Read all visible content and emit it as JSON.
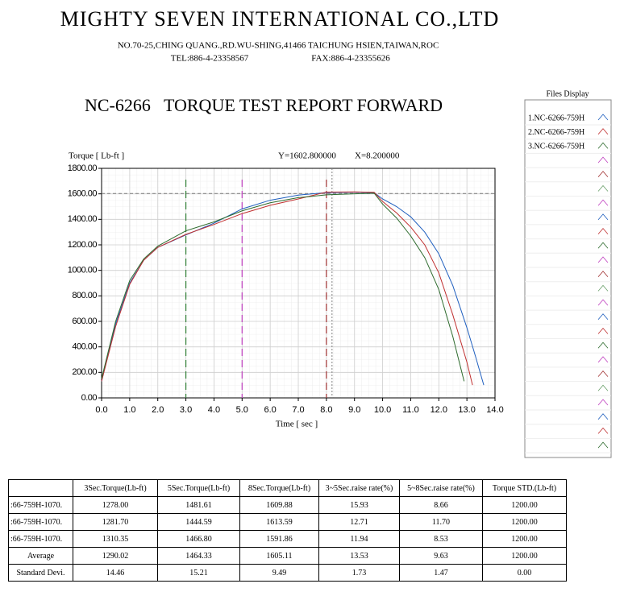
{
  "header": {
    "company": "MIGHTY SEVEN INTERNATIONAL CO.,LTD",
    "address": "NO.70-25,CHING QUANG.,RD.WU-SHING,41466 TAICHUNG HSIEN,TAIWAN,ROC",
    "tel": "TEL:886-4-23358567",
    "fax": "FAX:886-4-23355626",
    "report_title": "NC-6266   TORQUE TEST REPORT FORWARD"
  },
  "files_display": {
    "title": "Files Display",
    "items": [
      "1.NC-6266-759H",
      "2.NC-6266-759H",
      "3.NC-6266-759H"
    ]
  },
  "chart_data": {
    "type": "line",
    "y_axis_label": "Torque [ Lb-ft ]",
    "x_axis_label": "Time [ sec ]",
    "cursor": {
      "x": 8.2,
      "y": 1602.8,
      "x_label": "X=8.200000",
      "y_label": "Y=1602.800000",
      "color": "#808080"
    },
    "markers": [
      {
        "x": 3,
        "color": "#2e7d32"
      },
      {
        "x": 5,
        "color": "#c040c0"
      },
      {
        "x": 8,
        "color": "#a03030"
      }
    ],
    "xlim": [
      0,
      14
    ],
    "ylim": [
      0,
      1800
    ],
    "grid": true,
    "xticks": [
      {
        "value": 0,
        "label": "0.0"
      },
      {
        "value": 1,
        "label": "1.0"
      },
      {
        "value": 2,
        "label": "2.0"
      },
      {
        "value": 3,
        "label": "3.0"
      },
      {
        "value": 4,
        "label": "4.0"
      },
      {
        "value": 5,
        "label": "5.0"
      },
      {
        "value": 6,
        "label": "6.0"
      },
      {
        "value": 7,
        "label": "7.0"
      },
      {
        "value": 8,
        "label": "8.0"
      },
      {
        "value": 9,
        "label": "9.0"
      },
      {
        "value": 10,
        "label": "10.0"
      },
      {
        "value": 11,
        "label": "11.0"
      },
      {
        "value": 12,
        "label": "12.0"
      },
      {
        "value": 13,
        "label": "13.0"
      },
      {
        "value": 14,
        "label": "14.0"
      }
    ],
    "yticks": [
      {
        "value": 0,
        "label": "0.00"
      },
      {
        "value": 200,
        "label": "200.00"
      },
      {
        "value": 400,
        "label": "400.00"
      },
      {
        "value": 600,
        "label": "600.00"
      },
      {
        "value": 800,
        "label": "800.00"
      },
      {
        "value": 1000,
        "label": "1000.00"
      },
      {
        "value": 1200,
        "label": "1200.00"
      },
      {
        "value": 1400,
        "label": "1400.00"
      },
      {
        "value": 1600,
        "label": "1600.00"
      },
      {
        "value": 1800,
        "label": "1800.00"
      }
    ],
    "series": [
      {
        "color": "#1f5fbf",
        "x": [
          0,
          0.3,
          0.5,
          1,
          1.5,
          2,
          3,
          4,
          5,
          6,
          7,
          8,
          9,
          9.7,
          10,
          10.5,
          11,
          11.5,
          12,
          12.5,
          13,
          13.3,
          13.6
        ],
        "values": [
          130,
          400,
          580,
          900,
          1080,
          1180,
          1278,
          1370,
          1482,
          1550,
          1590,
          1610,
          1612,
          1610,
          1560,
          1500,
          1420,
          1300,
          1130,
          880,
          550,
          330,
          100
        ]
      },
      {
        "color": "#c03030",
        "x": [
          0,
          0.5,
          1,
          1.5,
          2,
          3,
          4,
          5,
          6,
          7,
          8,
          9,
          9.7,
          10,
          10.5,
          11,
          11.5,
          12,
          12.5,
          13,
          13.2
        ],
        "values": [
          130,
          560,
          890,
          1080,
          1180,
          1282,
          1360,
          1445,
          1510,
          1560,
          1614,
          1615,
          1612,
          1540,
          1450,
          1340,
          1200,
          980,
          650,
          280,
          100
        ]
      },
      {
        "color": "#2e6b2e",
        "x": [
          0,
          0.5,
          1,
          1.5,
          2,
          3,
          4,
          5,
          6,
          7,
          8,
          9,
          9.7,
          10,
          10.5,
          11,
          11.5,
          12,
          12.5,
          12.9
        ],
        "values": [
          150,
          600,
          920,
          1090,
          1190,
          1310,
          1380,
          1467,
          1530,
          1570,
          1592,
          1600,
          1605,
          1520,
          1410,
          1270,
          1100,
          850,
          480,
          130
        ]
      }
    ]
  },
  "table": {
    "columns": [
      "3Sec.Torque(Lb-ft)",
      "5Sec.Torque(Lb-ft)",
      "8Sec.Torque(Lb-ft)",
      "3~5Sec.raise rate(%)",
      "5~8Sec.raise rate(%)",
      "Torque STD.(Lb-ft)"
    ],
    "rows": [
      [
        ":66-759H-1070.",
        "1278.00",
        "1481.61",
        "1609.88",
        "15.93",
        "8.66",
        "1200.00"
      ],
      [
        ":66-759H-1070.",
        "1281.70",
        "1444.59",
        "1613.59",
        "12.71",
        "11.70",
        "1200.00"
      ],
      [
        ":66-759H-1070.",
        "1310.35",
        "1466.80",
        "1591.86",
        "11.94",
        "8.53",
        "1200.00"
      ],
      [
        "Average",
        "1290.02",
        "1464.33",
        "1605.11",
        "13.53",
        "9.63",
        "1200.00"
      ],
      [
        "Standard Devi.",
        "14.46",
        "15.21",
        "9.49",
        "1.73",
        "1.47",
        "0.00"
      ]
    ]
  }
}
